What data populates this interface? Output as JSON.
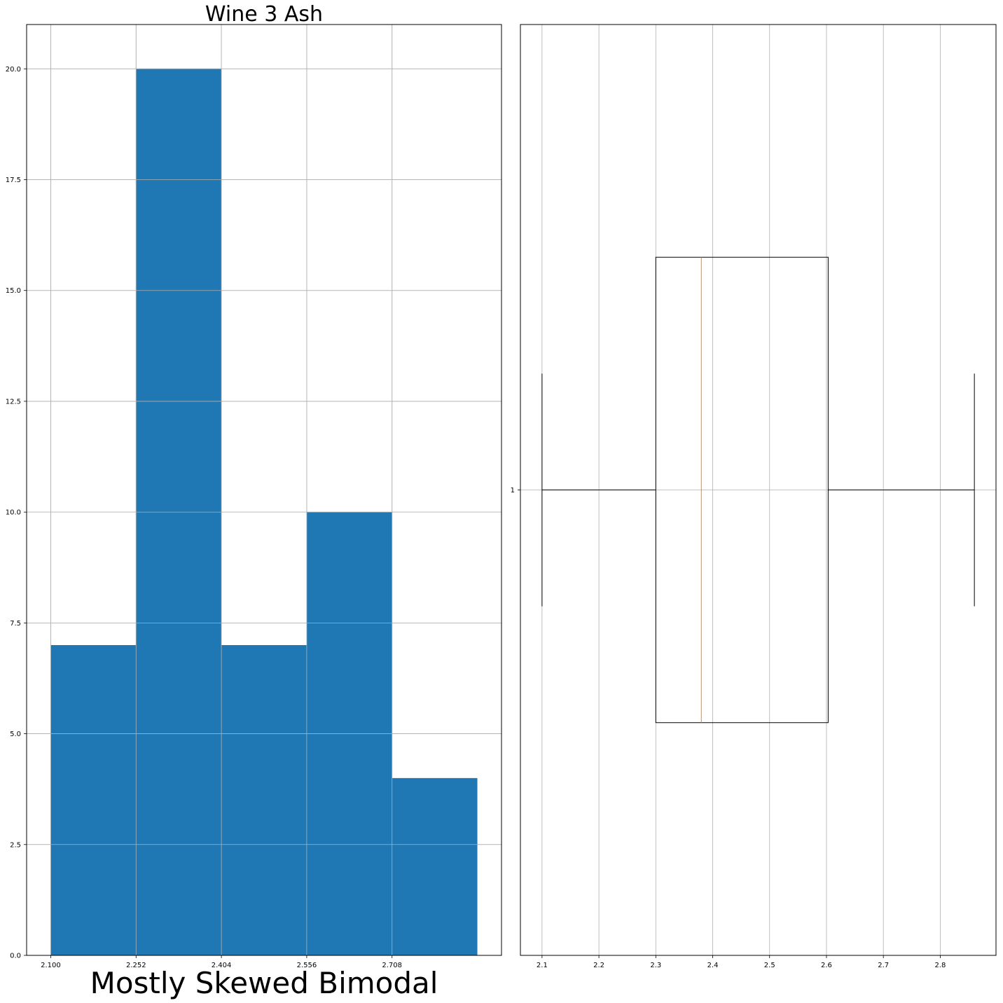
{
  "chart_data": [
    {
      "type": "bar",
      "title": "Wine 3 Ash",
      "xlabel": "Mostly Skewed Bimodal",
      "ylabel": "",
      "bin_edges": [
        2.1,
        2.252,
        2.404,
        2.556,
        2.708,
        2.86
      ],
      "values": [
        7,
        20,
        7,
        10,
        4
      ],
      "xlim": [
        2.057,
        2.903
      ],
      "ylim": [
        0,
        21
      ],
      "xticks": [
        2.1,
        2.252,
        2.404,
        2.556,
        2.708
      ],
      "xtick_labels": [
        "2.100",
        "2.252",
        "2.404",
        "2.556",
        "2.708"
      ],
      "yticks": [
        0,
        2.5,
        5,
        7.5,
        10,
        12.5,
        15,
        17.5,
        20
      ],
      "ytick_labels": [
        "0.0",
        "2.5",
        "5.0",
        "7.5",
        "10.0",
        "12.5",
        "15.0",
        "17.5",
        "20.0"
      ],
      "grid": true,
      "bar_color": "#1f77b4"
    },
    {
      "type": "box",
      "orientation": "horizontal",
      "positions": [
        1
      ],
      "stats": {
        "whisker_low": 2.1,
        "q1": 2.3,
        "median": 2.38,
        "q3": 2.603,
        "whisker_high": 2.86
      },
      "xlim": [
        2.062,
        2.898
      ],
      "ylim": [
        0.5,
        1.5
      ],
      "xticks": [
        2.1,
        2.2,
        2.3,
        2.4,
        2.5,
        2.6,
        2.7,
        2.8
      ],
      "xtick_labels": [
        "2.1",
        "2.2",
        "2.3",
        "2.4",
        "2.5",
        "2.6",
        "2.7",
        "2.8"
      ],
      "yticks": [
        1
      ],
      "ytick_labels": [
        "1"
      ],
      "grid": true,
      "median_color": "#ff7f0e",
      "box_color": "#000000"
    }
  ]
}
